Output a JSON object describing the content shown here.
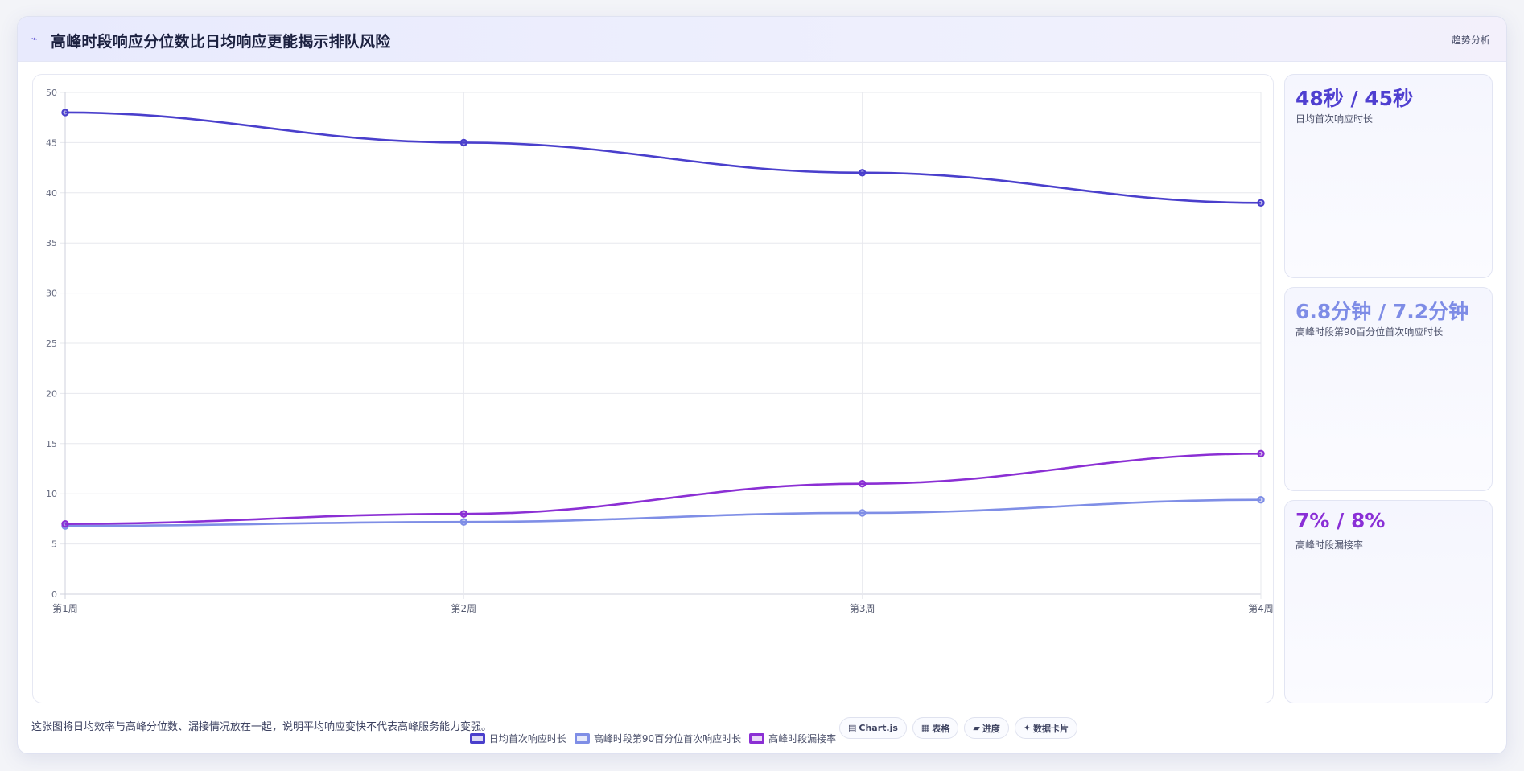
{
  "header": {
    "icon": "trend-line-icon",
    "title": "高峰时段响应分位数比日均响应更能揭示排队风险",
    "tag": "趋势分析"
  },
  "metrics": [
    {
      "value": "48秒 / 45秒",
      "label": "日均首次响应时长",
      "color": "#4f3fd0"
    },
    {
      "value": "6.8分钟 / 7.2分钟",
      "label": "高峰时段第90百分位首次响应时长",
      "color": "#7e8ce6"
    },
    {
      "value": "7% / 8%",
      "label": "高峰时段漏接率",
      "color": "#8a2fd6"
    }
  ],
  "footer": {
    "note": "这张图将日均效率与高峰分位数、漏接情况放在一起，说明平均响应变快不代表高峰服务能力变强。",
    "pills": [
      {
        "icon": "chart-icon",
        "label": "Chart.js"
      },
      {
        "icon": "table-icon",
        "label": "表格"
      },
      {
        "icon": "progress-icon",
        "label": "进度"
      },
      {
        "icon": "data-card-icon",
        "label": "数据卡片"
      }
    ]
  },
  "chart_data": {
    "type": "line",
    "categories": [
      "第1周",
      "第2周",
      "第3周",
      "第4周"
    ],
    "series": [
      {
        "name": "日均首次响应时长",
        "values": [
          48,
          45,
          42,
          39
        ],
        "color": "#4a3fcc"
      },
      {
        "name": "高峰时段第90百分位首次响应时长",
        "values": [
          6.8,
          7.2,
          8.1,
          9.4
        ],
        "color": "#7f8ee6"
      },
      {
        "name": "高峰时段漏接率",
        "values": [
          7,
          8,
          11,
          14
        ],
        "color": "#8b2fd4"
      }
    ],
    "ylim": [
      0,
      50
    ],
    "yticks": [
      0,
      5,
      10,
      15,
      20,
      25,
      30,
      35,
      40,
      45,
      50
    ],
    "grid": true,
    "legend": "bottom"
  }
}
